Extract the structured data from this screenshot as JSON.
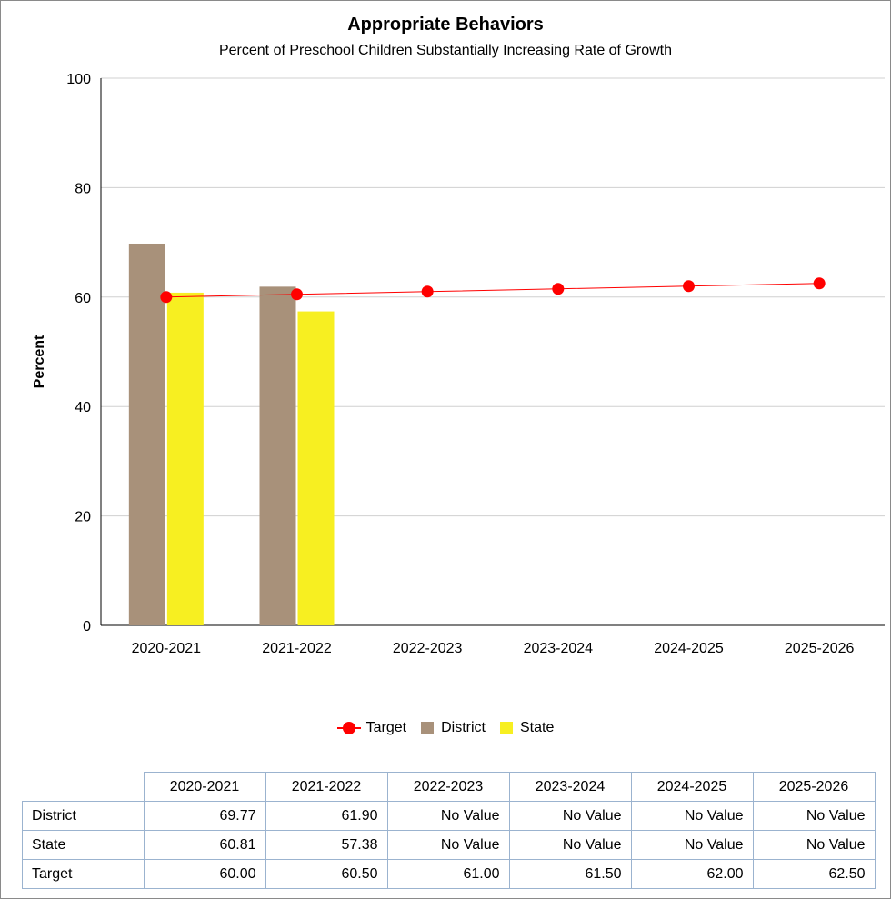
{
  "chart_data": {
    "type": "bar",
    "title": "Appropriate Behaviors",
    "subtitle": "Percent of Preschool Children Substantially Increasing Rate of Growth",
    "xlabel": "",
    "ylabel": "Percent",
    "ylim": [
      0,
      100
    ],
    "yticks": [
      0,
      20,
      40,
      60,
      80,
      100
    ],
    "grid": true,
    "legend_position": "bottom",
    "categories": [
      "2020-2021",
      "2021-2022",
      "2022-2023",
      "2023-2024",
      "2024-2025",
      "2025-2026"
    ],
    "series": [
      {
        "name": "District",
        "type": "bar",
        "color": "#a8917a",
        "values": [
          69.77,
          61.9,
          null,
          null,
          null,
          null
        ]
      },
      {
        "name": "State",
        "type": "bar",
        "color": "#f7ef21",
        "values": [
          60.81,
          57.38,
          null,
          null,
          null,
          null
        ]
      },
      {
        "name": "Target",
        "type": "line",
        "color": "#ff0000",
        "values": [
          60.0,
          60.5,
          61.0,
          61.5,
          62.0,
          62.5
        ]
      }
    ],
    "legend_order": [
      "Target",
      "District",
      "State"
    ]
  },
  "table": {
    "headers": [
      "2020-2021",
      "2021-2022",
      "2022-2023",
      "2023-2024",
      "2024-2025",
      "2025-2026"
    ],
    "rows": [
      {
        "label": "District",
        "cells": [
          "69.77",
          "61.90",
          "No Value",
          "No Value",
          "No Value",
          "No Value"
        ]
      },
      {
        "label": "State",
        "cells": [
          "60.81",
          "57.38",
          "No Value",
          "No Value",
          "No Value",
          "No Value"
        ]
      },
      {
        "label": "Target",
        "cells": [
          "60.00",
          "60.50",
          "61.00",
          "61.50",
          "62.00",
          "62.50"
        ]
      }
    ]
  }
}
